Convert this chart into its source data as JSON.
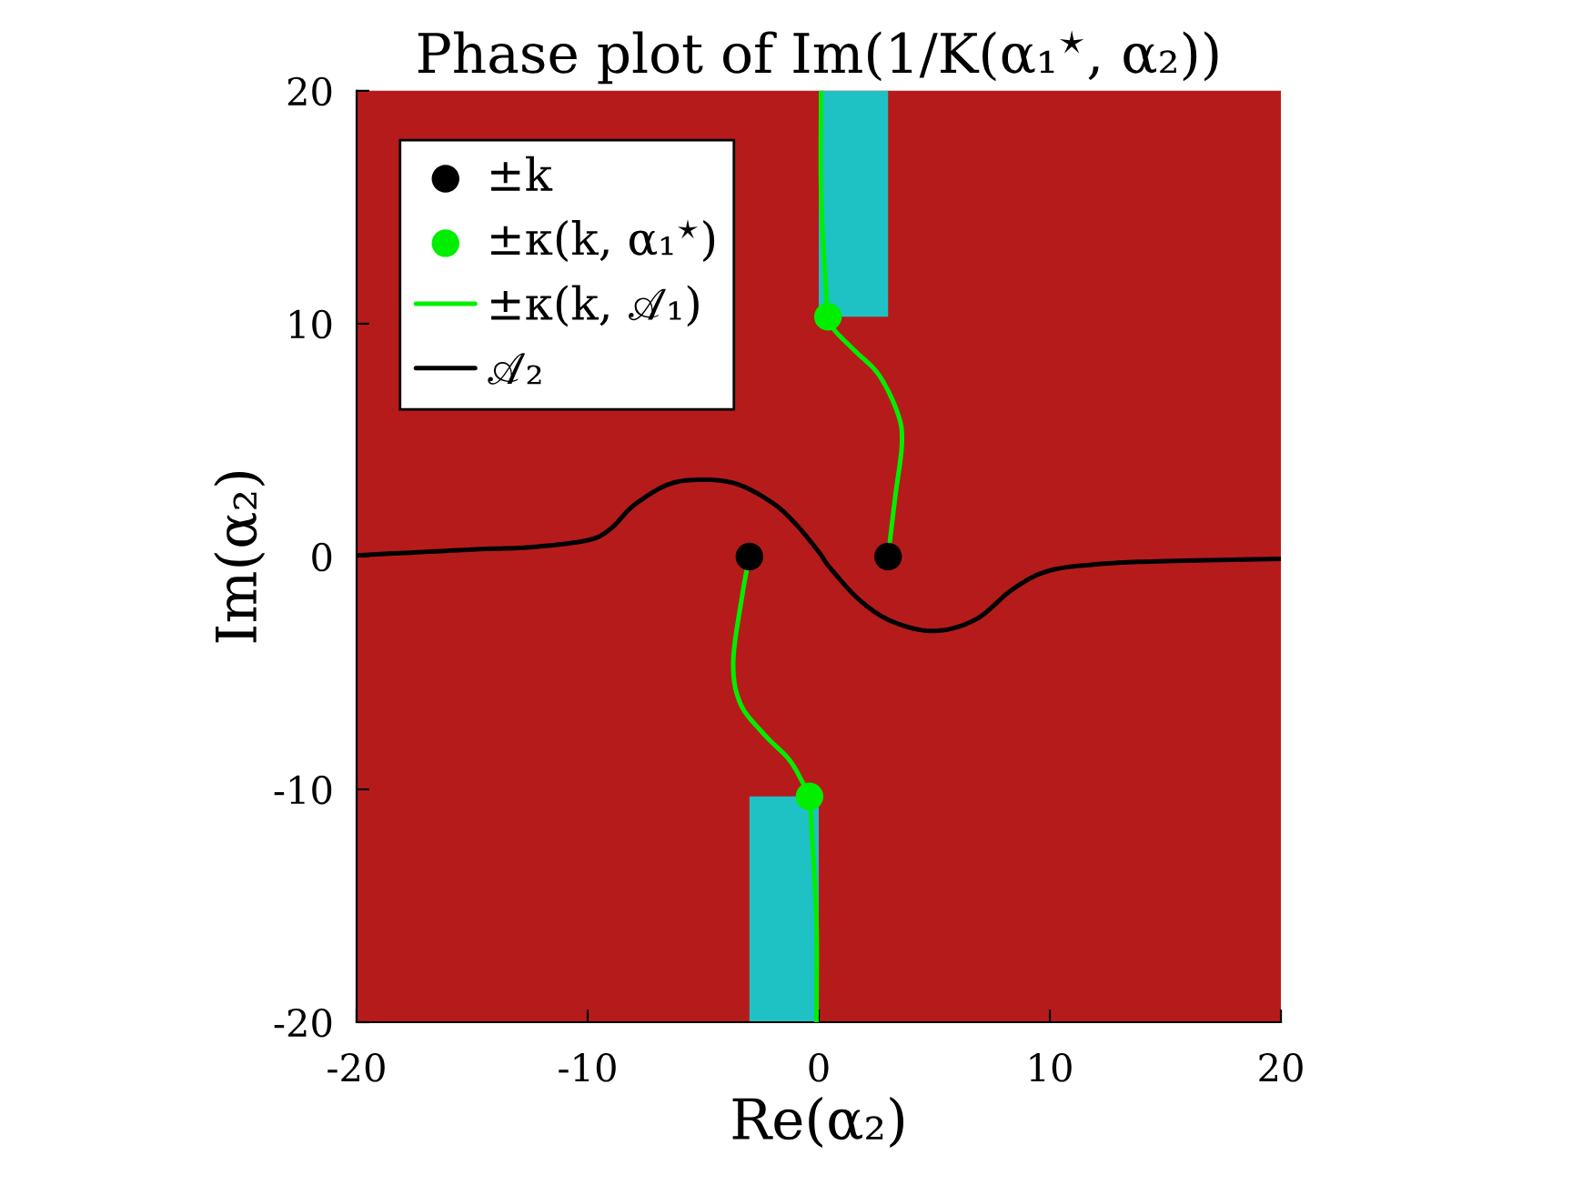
{
  "chart_data": {
    "type": "line",
    "title": "Phase plot of Im(1/K(α₁$^{⋆}$, α₂))",
    "xlabel": "Re(α₂)",
    "ylabel": "Im(α₂)",
    "xlim": [
      -20,
      20
    ],
    "ylim": [
      -20,
      20
    ],
    "xticks": [
      -20,
      -10,
      0,
      10,
      20
    ],
    "yticks": [
      -20,
      -10,
      0,
      10,
      20
    ],
    "legend": "top left",
    "series": [
      {
        "name": "±k",
        "type": "scatter",
        "marker": "circle",
        "color": "#000000",
        "x": [
          -3,
          3
        ],
        "values": [
          0,
          0
        ]
      },
      {
        "name": "±κ(k, α₁$^{⋆}$)",
        "type": "scatter",
        "marker": "circle",
        "color": "#00ee00",
        "x": [
          0.4,
          -0.4
        ],
        "values": [
          10.3,
          -10.3
        ]
      },
      {
        "name": "±κ(k, 𝒜₁)",
        "color": "#00ee00",
        "x": [
          3,
          3.3,
          3.6,
          3.4,
          2.6,
          1.6,
          0.7,
          0.4,
          0.3,
          0.1,
          0.1,
          0,
          -3,
          -3.3,
          -3.7,
          -3.4,
          -2.4,
          -1.3,
          -0.7,
          -0.4,
          -0.3,
          -0.1,
          -0.1
        ],
        "values": [
          0,
          2.5,
          4.9,
          6.2,
          7.8,
          8.8,
          9.7,
          10.3,
          11.7,
          15.6,
          20,
          null,
          0,
          -1.6,
          -4.5,
          -6.3,
          -7.6,
          -8.7,
          -9.7,
          -10.3,
          -11.8,
          -15.7,
          -20
        ]
      },
      {
        "name": "𝒜₂",
        "color": "#000000",
        "x": [
          -20,
          -15,
          -12.5,
          -10,
          -9,
          -8,
          -6.5,
          -5,
          -3.5,
          -2,
          -1,
          0,
          0.5,
          1.8,
          3.2,
          5,
          6.8,
          8.4,
          10,
          12.5,
          15,
          20
        ],
        "values": [
          0.05,
          0.3,
          0.4,
          0.7,
          1.2,
          2.2,
          3.1,
          3.3,
          3.1,
          2.3,
          1.4,
          0.2,
          -0.5,
          -1.9,
          -2.8,
          -3.2,
          -2.7,
          -1.4,
          -0.6,
          -0.3,
          -0.2,
          -0.1
        ]
      }
    ]
  }
}
